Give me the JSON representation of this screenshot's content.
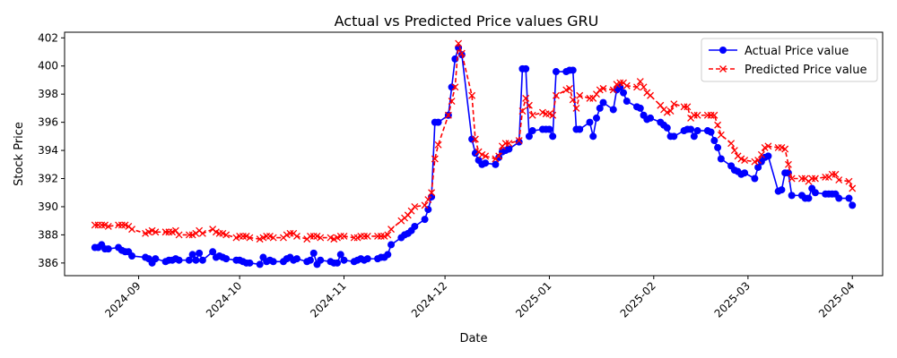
{
  "chart_data": {
    "type": "line",
    "title": "Actual vs Predicted Price values GRU",
    "xlabel": "Date",
    "ylabel": "Stock Price",
    "xlim": [
      "2024-08-10",
      "2025-04-10"
    ],
    "ylim": [
      385.1,
      402.4
    ],
    "x_ticks": [
      "2024-09",
      "2024-10",
      "2024-11",
      "2024-12",
      "2025-01",
      "2025-02",
      "2025-03",
      "2025-04"
    ],
    "y_ticks": [
      386,
      388,
      390,
      392,
      394,
      396,
      398,
      400,
      402
    ],
    "grid": false,
    "legend_position": "top-right",
    "series": [
      {
        "name": "Actual Price value",
        "color": "#0000ff",
        "line_style": "solid",
        "marker": "circle",
        "x": [
          "2024-08-19",
          "2024-08-20",
          "2024-08-21",
          "2024-08-22",
          "2024-08-23",
          "2024-08-26",
          "2024-08-27",
          "2024-08-28",
          "2024-08-29",
          "2024-08-30",
          "2024-09-03",
          "2024-09-04",
          "2024-09-05",
          "2024-09-06",
          "2024-09-09",
          "2024-09-10",
          "2024-09-11",
          "2024-09-12",
          "2024-09-13",
          "2024-09-16",
          "2024-09-17",
          "2024-09-18",
          "2024-09-19",
          "2024-09-20",
          "2024-09-23",
          "2024-09-24",
          "2024-09-25",
          "2024-09-26",
          "2024-09-27",
          "2024-09-30",
          "2024-10-01",
          "2024-10-02",
          "2024-10-03",
          "2024-10-04",
          "2024-10-07",
          "2024-10-08",
          "2024-10-09",
          "2024-10-10",
          "2024-10-11",
          "2024-10-14",
          "2024-10-15",
          "2024-10-16",
          "2024-10-17",
          "2024-10-18",
          "2024-10-21",
          "2024-10-22",
          "2024-10-23",
          "2024-10-24",
          "2024-10-25",
          "2024-10-28",
          "2024-10-29",
          "2024-10-30",
          "2024-10-31",
          "2024-11-01",
          "2024-11-04",
          "2024-11-05",
          "2024-11-06",
          "2024-11-07",
          "2024-11-08",
          "2024-11-11",
          "2024-11-12",
          "2024-11-13",
          "2024-11-14",
          "2024-11-15",
          "2024-11-18",
          "2024-11-19",
          "2024-11-20",
          "2024-11-21",
          "2024-11-22",
          "2024-11-25",
          "2024-11-26",
          "2024-11-27",
          "2024-11-28",
          "2024-11-29",
          "2024-12-02",
          "2024-12-03",
          "2024-12-04",
          "2024-12-05",
          "2024-12-06",
          "2024-12-09",
          "2024-12-10",
          "2024-12-11",
          "2024-12-12",
          "2024-12-13",
          "2024-12-16",
          "2024-12-17",
          "2024-12-18",
          "2024-12-19",
          "2024-12-20",
          "2024-12-23",
          "2024-12-24",
          "2024-12-25",
          "2024-12-26",
          "2024-12-27",
          "2024-12-30",
          "2024-12-31",
          "2025-01-01",
          "2025-01-02",
          "2025-01-03",
          "2025-01-06",
          "2025-01-07",
          "2025-01-08",
          "2025-01-09",
          "2025-01-10",
          "2025-01-13",
          "2025-01-14",
          "2025-01-15",
          "2025-01-16",
          "2025-01-17",
          "2025-01-20",
          "2025-01-21",
          "2025-01-22",
          "2025-01-23",
          "2025-01-24",
          "2025-01-27",
          "2025-01-28",
          "2025-01-29",
          "2025-01-30",
          "2025-01-31",
          "2025-02-03",
          "2025-02-04",
          "2025-02-05",
          "2025-02-06",
          "2025-02-07",
          "2025-02-10",
          "2025-02-11",
          "2025-02-12",
          "2025-02-13",
          "2025-02-14",
          "2025-02-17",
          "2025-02-18",
          "2025-02-19",
          "2025-02-20",
          "2025-02-21",
          "2025-02-24",
          "2025-02-25",
          "2025-02-26",
          "2025-02-27",
          "2025-02-28",
          "2025-03-03",
          "2025-03-04",
          "2025-03-05",
          "2025-03-06",
          "2025-03-07",
          "2025-03-10",
          "2025-03-11",
          "2025-03-12",
          "2025-03-13",
          "2025-03-14",
          "2025-03-17",
          "2025-03-18",
          "2025-03-19",
          "2025-03-20",
          "2025-03-21",
          "2025-03-24",
          "2025-03-25",
          "2025-03-26",
          "2025-03-27",
          "2025-03-28",
          "2025-03-31",
          "2025-04-01"
        ],
        "values": [
          387.1,
          387.1,
          387.3,
          387.0,
          387.0,
          387.1,
          386.9,
          386.8,
          386.8,
          386.5,
          386.4,
          386.3,
          386.0,
          386.3,
          386.1,
          386.2,
          386.2,
          386.3,
          386.2,
          386.2,
          386.6,
          386.2,
          386.7,
          386.2,
          386.8,
          386.4,
          386.5,
          386.4,
          386.3,
          386.2,
          386.2,
          386.1,
          386.0,
          386.0,
          385.9,
          386.4,
          386.1,
          386.2,
          386.1,
          386.1,
          386.3,
          386.4,
          386.2,
          386.3,
          386.1,
          386.2,
          386.7,
          385.9,
          386.2,
          386.1,
          386.0,
          386.0,
          386.6,
          386.2,
          386.1,
          386.2,
          386.3,
          386.2,
          386.3,
          386.3,
          386.4,
          386.4,
          386.6,
          387.3,
          387.8,
          388.0,
          388.1,
          388.3,
          388.6,
          389.1,
          389.8,
          390.7,
          396.0,
          396.0,
          396.5,
          398.5,
          400.5,
          401.3,
          400.8,
          394.8,
          393.8,
          393.3,
          393.0,
          393.1,
          393.0,
          393.5,
          393.9,
          394.0,
          394.1,
          394.6,
          399.8,
          399.8,
          395.0,
          395.4,
          395.5,
          395.5,
          395.5,
          395.0,
          399.6,
          399.6,
          399.7,
          399.7,
          395.5,
          395.5,
          396.0,
          395.0,
          396.3,
          397.0,
          397.4,
          396.9,
          398.3,
          398.5,
          398.1,
          397.5,
          397.1,
          397.0,
          396.5,
          396.2,
          396.3,
          396.0,
          395.8,
          395.6,
          395.0,
          395.0,
          395.4,
          395.5,
          395.5,
          395.0,
          395.4,
          395.4,
          395.3,
          394.7,
          394.2,
          393.4,
          392.9,
          392.6,
          392.5,
          392.3,
          392.4,
          392.0,
          392.8,
          393.2,
          393.5,
          393.6,
          391.1,
          391.2,
          392.4,
          392.4,
          390.8,
          390.8,
          390.6,
          390.6,
          391.3,
          391.0,
          390.9,
          390.9,
          390.9,
          390.9,
          390.6,
          390.6,
          390.1
        ]
      },
      {
        "name": "Predicted Price value",
        "color": "#ff0000",
        "line_style": "dashed",
        "marker": "x",
        "x": [
          "2024-08-19",
          "2024-08-20",
          "2024-08-21",
          "2024-08-22",
          "2024-08-23",
          "2024-08-26",
          "2024-08-27",
          "2024-08-28",
          "2024-08-29",
          "2024-08-30",
          "2024-09-03",
          "2024-09-04",
          "2024-09-05",
          "2024-09-06",
          "2024-09-09",
          "2024-09-10",
          "2024-09-11",
          "2024-09-12",
          "2024-09-13",
          "2024-09-16",
          "2024-09-17",
          "2024-09-18",
          "2024-09-19",
          "2024-09-20",
          "2024-09-23",
          "2024-09-24",
          "2024-09-25",
          "2024-09-26",
          "2024-09-27",
          "2024-09-30",
          "2024-10-01",
          "2024-10-02",
          "2024-10-03",
          "2024-10-04",
          "2024-10-07",
          "2024-10-08",
          "2024-10-09",
          "2024-10-10",
          "2024-10-11",
          "2024-10-14",
          "2024-10-15",
          "2024-10-16",
          "2024-10-17",
          "2024-10-18",
          "2024-10-21",
          "2024-10-22",
          "2024-10-23",
          "2024-10-24",
          "2024-10-25",
          "2024-10-28",
          "2024-10-29",
          "2024-10-30",
          "2024-10-31",
          "2024-11-01",
          "2024-11-04",
          "2024-11-05",
          "2024-11-06",
          "2024-11-07",
          "2024-11-08",
          "2024-11-11",
          "2024-11-12",
          "2024-11-13",
          "2024-11-14",
          "2024-11-15",
          "2024-11-18",
          "2024-11-19",
          "2024-11-20",
          "2024-11-21",
          "2024-11-22",
          "2024-11-25",
          "2024-11-26",
          "2024-11-27",
          "2024-11-28",
          "2024-11-29",
          "2024-12-02",
          "2024-12-03",
          "2024-12-04",
          "2024-12-05",
          "2024-12-06",
          "2024-12-09",
          "2024-12-10",
          "2024-12-11",
          "2024-12-12",
          "2024-12-13",
          "2024-12-16",
          "2024-12-17",
          "2024-12-18",
          "2024-12-19",
          "2024-12-20",
          "2024-12-23",
          "2024-12-24",
          "2024-12-25",
          "2024-12-26",
          "2024-12-27",
          "2024-12-30",
          "2024-12-31",
          "2025-01-01",
          "2025-01-02",
          "2025-01-03",
          "2025-01-06",
          "2025-01-07",
          "2025-01-08",
          "2025-01-09",
          "2025-01-10",
          "2025-01-13",
          "2025-01-14",
          "2025-01-15",
          "2025-01-16",
          "2025-01-17",
          "2025-01-20",
          "2025-01-21",
          "2025-01-22",
          "2025-01-23",
          "2025-01-24",
          "2025-01-27",
          "2025-01-28",
          "2025-01-29",
          "2025-01-30",
          "2025-01-31",
          "2025-02-03",
          "2025-02-04",
          "2025-02-05",
          "2025-02-06",
          "2025-02-07",
          "2025-02-10",
          "2025-02-11",
          "2025-02-12",
          "2025-02-13",
          "2025-02-14",
          "2025-02-17",
          "2025-02-18",
          "2025-02-19",
          "2025-02-20",
          "2025-02-21",
          "2025-02-24",
          "2025-02-25",
          "2025-02-26",
          "2025-02-27",
          "2025-02-28",
          "2025-03-03",
          "2025-03-04",
          "2025-03-05",
          "2025-03-06",
          "2025-03-07",
          "2025-03-10",
          "2025-03-11",
          "2025-03-12",
          "2025-03-13",
          "2025-03-14",
          "2025-03-17",
          "2025-03-18",
          "2025-03-19",
          "2025-03-20",
          "2025-03-21",
          "2025-03-24",
          "2025-03-25",
          "2025-03-26",
          "2025-03-27",
          "2025-03-28",
          "2025-03-31",
          "2025-04-01"
        ],
        "values": [
          388.7,
          388.7,
          388.7,
          388.7,
          388.6,
          388.7,
          388.7,
          388.7,
          388.6,
          388.4,
          388.1,
          388.2,
          388.3,
          388.2,
          388.2,
          388.2,
          388.2,
          388.3,
          388.0,
          388.0,
          388.0,
          388.1,
          388.3,
          388.1,
          388.4,
          388.2,
          388.1,
          388.1,
          388.0,
          387.8,
          387.9,
          387.9,
          387.9,
          387.8,
          387.7,
          387.8,
          387.9,
          387.9,
          387.8,
          387.8,
          388.0,
          388.1,
          388.1,
          387.9,
          387.7,
          387.9,
          387.9,
          387.9,
          387.8,
          387.8,
          387.7,
          387.8,
          387.9,
          387.9,
          387.8,
          387.8,
          387.9,
          387.9,
          387.9,
          387.9,
          387.9,
          387.9,
          388.0,
          388.4,
          389.0,
          389.2,
          389.4,
          389.7,
          390.0,
          390.1,
          390.5,
          391.0,
          393.4,
          394.4,
          396.5,
          397.5,
          398.5,
          401.6,
          400.9,
          397.9,
          394.8,
          393.9,
          393.7,
          393.6,
          393.4,
          393.6,
          394.3,
          394.5,
          394.5,
          394.7,
          396.8,
          397.7,
          397.2,
          396.5,
          396.7,
          396.6,
          396.6,
          396.5,
          397.9,
          398.3,
          398.4,
          397.6,
          397.0,
          397.9,
          397.7,
          397.7,
          398.0,
          398.3,
          398.4,
          398.3,
          398.7,
          398.8,
          398.8,
          398.6,
          398.5,
          398.9,
          398.5,
          398.1,
          397.9,
          397.2,
          396.9,
          396.7,
          396.8,
          397.3,
          397.1,
          397.1,
          396.3,
          396.5,
          396.5,
          396.5,
          396.5,
          396.5,
          395.8,
          395.1,
          394.5,
          394.0,
          393.6,
          393.4,
          393.3,
          393.2,
          393.3,
          393.7,
          394.2,
          394.3,
          394.2,
          394.2,
          394.1,
          393.0,
          392.0,
          392.0,
          392.0,
          391.8,
          392.0,
          392.0,
          392.1,
          392.1,
          392.3,
          392.3,
          391.9,
          391.8,
          391.3
        ]
      }
    ]
  }
}
